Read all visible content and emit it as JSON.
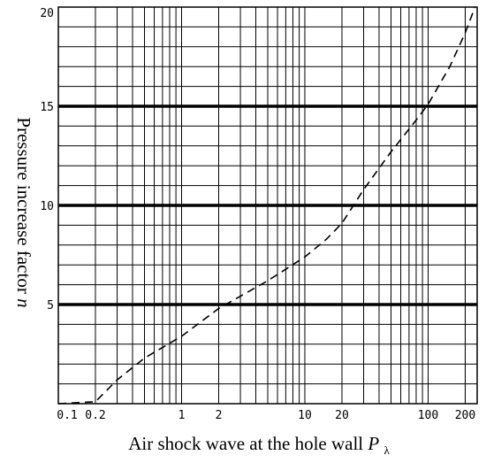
{
  "chart_data": {
    "type": "line",
    "title": "",
    "xlabel": "Air shock wave at the hole wall",
    "xlabel_symbol": "P",
    "xlabel_subscript": "λ",
    "ylabel": "Pressure increase factor",
    "ylabel_symbol": "n",
    "x_scale": "log",
    "xlim": [
      0.1,
      250
    ],
    "ylim": [
      0,
      20
    ],
    "grid": true,
    "x_tick_labels": [
      "0.1",
      "0.2",
      "1",
      "2",
      "10",
      "20",
      "100",
      "200"
    ],
    "y_tick_labels": [
      "5",
      "10",
      "15",
      "20"
    ],
    "series": [
      {
        "line_style": "dashed",
        "color": "#000000",
        "x": [
          0.1,
          0.2,
          0.3,
          0.5,
          1,
          2,
          5,
          10,
          15,
          20,
          30,
          50,
          80,
          100,
          150,
          200,
          240
        ],
        "y": [
          0,
          0.1,
          1.2,
          2.3,
          3.4,
          4.8,
          6.2,
          7.4,
          8.3,
          9.1,
          10.8,
          12.7,
          14.3,
          15.1,
          17.0,
          18.7,
          20.0
        ]
      }
    ]
  }
}
